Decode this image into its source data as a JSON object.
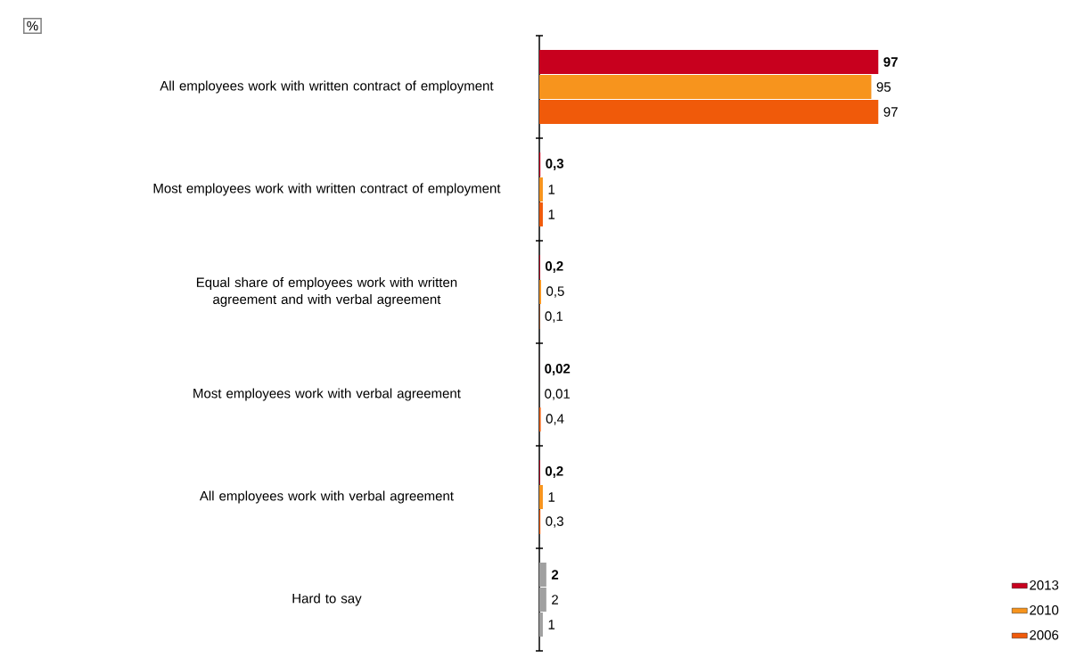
{
  "chart_data": {
    "type": "bar",
    "orientation": "horizontal",
    "legend": "bottom right",
    "annotations": [
      "%"
    ],
    "categories": [
      "All employees work with written contract of employment",
      "Most employees work with written contract of employment",
      "Equal share of employees work with written agreement and with verbal agreement",
      "Most employees work with verbal agreement",
      "All employees work with verbal agreement",
      "Hard to say"
    ],
    "series": [
      {
        "name": "2013",
        "color": "#c8001e",
        "colors": [
          "#c8001e",
          "#c8001e",
          "#c8001e",
          "#c8001e",
          "#c8001e",
          "#a0a0a0"
        ],
        "values": [
          97,
          0.3,
          0.2,
          0.02,
          0.2,
          2
        ],
        "value_labels": [
          "97",
          "0,3",
          "0,2",
          "0,02",
          "0,2",
          "2"
        ]
      },
      {
        "name": "2010",
        "color": "#f7941d",
        "colors": [
          "#f7941d",
          "#f7941d",
          "#f7941d",
          "#f7941d",
          "#f7941d",
          "#a0a0a0"
        ],
        "values": [
          95,
          1,
          0.5,
          0.01,
          1,
          2
        ],
        "value_labels": [
          "95",
          "1",
          "0,5",
          "0,01",
          "1",
          "2"
        ]
      },
      {
        "name": "2006",
        "color": "#f05a0a",
        "colors": [
          "#f05a0a",
          "#f05a0a",
          "#f05a0a",
          "#f05a0a",
          "#f05a0a",
          "#a0a0a0"
        ],
        "values": [
          97,
          1,
          0.1,
          0.4,
          0.3,
          1
        ],
        "value_labels": [
          "97",
          "1",
          "0,1",
          "0,4",
          "0,3",
          "1"
        ]
      }
    ]
  }
}
